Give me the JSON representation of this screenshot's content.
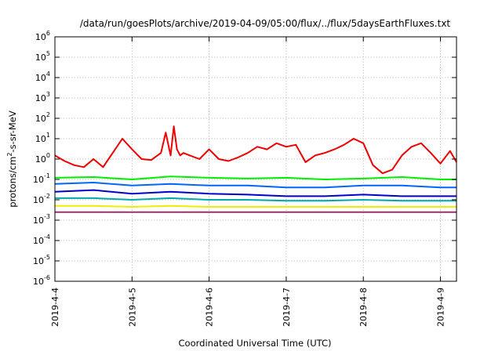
{
  "chart_data": {
    "type": "line",
    "title": "/data/run/goesPlots/archive/2019-04-09/05:00/flux/../flux/5daysEarthFluxes.txt",
    "xlabel": "Coordinated Universal Time (UTC)",
    "ylabel": "protons/cm2-s-sr-MeV",
    "ylabel_parts": {
      "pre": "protons/cm",
      "sup": "2",
      "post": "-s-sr-MeV"
    },
    "yscale": "log",
    "ylim": [
      1e-06,
      1000000.0
    ],
    "y_ticks": [
      {
        "value": 1e-06,
        "base": "10",
        "exp": "-6"
      },
      {
        "value": 1e-05,
        "base": "10",
        "exp": "-5"
      },
      {
        "value": 0.0001,
        "base": "10",
        "exp": "-4"
      },
      {
        "value": 0.001,
        "base": "10",
        "exp": "-3"
      },
      {
        "value": 0.01,
        "base": "10",
        "exp": "-2"
      },
      {
        "value": 0.1,
        "base": "10",
        "exp": "-1"
      },
      {
        "value": 1,
        "base": "10",
        "exp": "0"
      },
      {
        "value": 10,
        "base": "10",
        "exp": "1"
      },
      {
        "value": 100,
        "base": "10",
        "exp": "2"
      },
      {
        "value": 1000,
        "base": "10",
        "exp": "3"
      },
      {
        "value": 10000,
        "base": "10",
        "exp": "4"
      },
      {
        "value": 100000,
        "base": "10",
        "exp": "5"
      },
      {
        "value": 1000000,
        "base": "10",
        "exp": "6"
      }
    ],
    "x_ticks": [
      "2019-4-4",
      "2019-4-5",
      "2019-4-6",
      "2019-4-7",
      "2019-4-8",
      "2019-4-9"
    ],
    "xlim": [
      "2019-04-04T00:00",
      "2019-04-09T05:00"
    ],
    "grid": true,
    "series": [
      {
        "color": "#ee0000",
        "x": [
          "2019-04-04T00:00",
          "2019-04-04T03:00",
          "2019-04-04T06:00",
          "2019-04-04T09:00",
          "2019-04-04T12:00",
          "2019-04-04T15:00",
          "2019-04-04T18:00",
          "2019-04-04T21:00",
          "2019-04-05T00:00",
          "2019-04-05T03:00",
          "2019-04-05T06:00",
          "2019-04-05T09:00",
          "2019-04-05T10:30",
          "2019-04-05T12:00",
          "2019-04-05T13:00",
          "2019-04-05T14:00",
          "2019-04-05T15:00",
          "2019-04-05T16:00",
          "2019-04-05T18:00",
          "2019-04-05T21:00",
          "2019-04-06T00:00",
          "2019-04-06T03:00",
          "2019-04-06T06:00",
          "2019-04-06T09:00",
          "2019-04-06T12:00",
          "2019-04-06T15:00",
          "2019-04-06T18:00",
          "2019-04-06T21:00",
          "2019-04-07T00:00",
          "2019-04-07T03:00",
          "2019-04-07T06:00",
          "2019-04-07T09:00",
          "2019-04-07T12:00",
          "2019-04-07T15:00",
          "2019-04-07T18:00",
          "2019-04-07T21:00",
          "2019-04-08T00:00",
          "2019-04-08T03:00",
          "2019-04-08T06:00",
          "2019-04-08T09:00",
          "2019-04-08T12:00",
          "2019-04-08T15:00",
          "2019-04-08T18:00",
          "2019-04-08T21:00",
          "2019-04-09T00:00",
          "2019-04-09T03:00",
          "2019-04-09T05:00"
        ],
        "values": [
          1.5,
          0.8,
          0.5,
          0.4,
          1.0,
          0.4,
          2.0,
          10,
          3,
          1.0,
          0.9,
          2.0,
          20,
          1.5,
          40,
          3.0,
          1.5,
          2.0,
          1.5,
          1.0,
          3.0,
          1.0,
          0.8,
          1.2,
          2.0,
          4.0,
          3.0,
          6.0,
          4.0,
          5.0,
          0.7,
          1.5,
          2.0,
          3.0,
          5.0,
          10,
          6.0,
          0.5,
          0.2,
          0.3,
          1.5,
          4.0,
          6.0,
          2.0,
          0.6,
          2.5,
          0.7
        ]
      },
      {
        "color": "#00ee00",
        "x": [
          "2019-04-04T00:00",
          "2019-04-04T12:00",
          "2019-04-05T00:00",
          "2019-04-05T12:00",
          "2019-04-06T00:00",
          "2019-04-06T12:00",
          "2019-04-07T00:00",
          "2019-04-07T12:00",
          "2019-04-08T00:00",
          "2019-04-08T12:00",
          "2019-04-09T00:00",
          "2019-04-09T05:00"
        ],
        "values": [
          0.12,
          0.13,
          0.1,
          0.14,
          0.12,
          0.11,
          0.12,
          0.1,
          0.11,
          0.13,
          0.1,
          0.1
        ]
      },
      {
        "color": "#0066ff",
        "x": [
          "2019-04-04T00:00",
          "2019-04-04T12:00",
          "2019-04-05T00:00",
          "2019-04-05T12:00",
          "2019-04-06T00:00",
          "2019-04-06T12:00",
          "2019-04-07T00:00",
          "2019-04-07T12:00",
          "2019-04-08T00:00",
          "2019-04-08T12:00",
          "2019-04-09T00:00",
          "2019-04-09T05:00"
        ],
        "values": [
          0.06,
          0.07,
          0.05,
          0.06,
          0.05,
          0.05,
          0.04,
          0.04,
          0.05,
          0.05,
          0.04,
          0.04
        ]
      },
      {
        "color": "#0000cc",
        "x": [
          "2019-04-04T00:00",
          "2019-04-04T12:00",
          "2019-04-05T00:00",
          "2019-04-05T12:00",
          "2019-04-06T00:00",
          "2019-04-06T12:00",
          "2019-04-07T00:00",
          "2019-04-07T12:00",
          "2019-04-08T00:00",
          "2019-04-08T12:00",
          "2019-04-09T00:00",
          "2019-04-09T05:00"
        ],
        "values": [
          0.025,
          0.03,
          0.02,
          0.025,
          0.02,
          0.018,
          0.015,
          0.015,
          0.018,
          0.015,
          0.015,
          0.015
        ]
      },
      {
        "color": "#00aaaa",
        "x": [
          "2019-04-04T00:00",
          "2019-04-04T12:00",
          "2019-04-05T00:00",
          "2019-04-05T12:00",
          "2019-04-06T00:00",
          "2019-04-06T12:00",
          "2019-04-07T00:00",
          "2019-04-07T12:00",
          "2019-04-08T00:00",
          "2019-04-08T12:00",
          "2019-04-09T00:00",
          "2019-04-09T05:00"
        ],
        "values": [
          0.012,
          0.012,
          0.01,
          0.012,
          0.01,
          0.01,
          0.009,
          0.009,
          0.01,
          0.009,
          0.009,
          0.009
        ]
      },
      {
        "color": "#eeee00",
        "x": [
          "2019-04-04T00:00",
          "2019-04-04T12:00",
          "2019-04-05T00:00",
          "2019-04-05T12:00",
          "2019-04-06T00:00",
          "2019-04-06T12:00",
          "2019-04-07T00:00",
          "2019-04-07T12:00",
          "2019-04-08T00:00",
          "2019-04-08T12:00",
          "2019-04-09T00:00",
          "2019-04-09T05:00"
        ],
        "values": [
          0.005,
          0.005,
          0.0045,
          0.005,
          0.0045,
          0.0045,
          0.0045,
          0.0045,
          0.0045,
          0.0045,
          0.0045,
          0.0045
        ]
      },
      {
        "color": "#993366",
        "x": [
          "2019-04-04T00:00",
          "2019-04-04T12:00",
          "2019-04-05T00:00",
          "2019-04-05T12:00",
          "2019-04-06T00:00",
          "2019-04-06T12:00",
          "2019-04-07T00:00",
          "2019-04-07T12:00",
          "2019-04-08T00:00",
          "2019-04-08T12:00",
          "2019-04-09T00:00",
          "2019-04-09T05:00"
        ],
        "values": [
          0.0025,
          0.0025,
          0.0025,
          0.0025,
          0.0025,
          0.0025,
          0.0025,
          0.0025,
          0.0025,
          0.0025,
          0.0025,
          0.0025
        ]
      }
    ]
  }
}
